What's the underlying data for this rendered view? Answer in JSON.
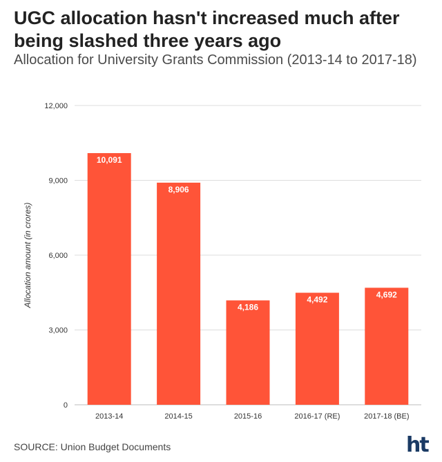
{
  "header": {
    "title": "UGC allocation hasn't increased much after being slashed three years ago",
    "subtitle": "Allocation for University Grants Commission (2013-14 to 2017-18)"
  },
  "footer": {
    "source": "SOURCE: Union Budget Documents",
    "logo_text": "ht",
    "logo_color": "#1a3a64"
  },
  "chart_data": {
    "type": "bar",
    "categories": [
      "2013-14",
      "2014-15",
      "2015-16",
      "2016-17 (RE)",
      "2017-18 (BE)"
    ],
    "values": [
      10091,
      8906,
      4186,
      4492,
      4692
    ],
    "data_labels": [
      "10,091",
      "8,906",
      "4,186",
      "4,492",
      "4,692"
    ],
    "ylabel": "Allocation amount (in crores)",
    "xlabel": "",
    "ylim": [
      0,
      12000
    ],
    "yticks": [
      0,
      3000,
      6000,
      9000,
      12000
    ],
    "ytick_labels": [
      "0",
      "3,000",
      "6,000",
      "9,000",
      "12,000"
    ],
    "grid": true,
    "bar_color": "#ff5438",
    "grid_color": "#dddddd"
  }
}
